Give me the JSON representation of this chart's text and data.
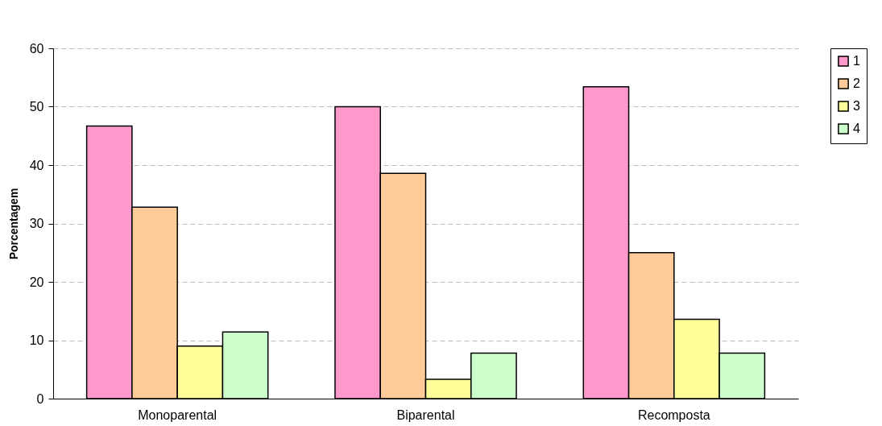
{
  "chart_data": {
    "type": "bar",
    "ylabel": "Porcentagem",
    "categories": [
      "Monoparental",
      "Biparental",
      "Recomposta"
    ],
    "series": [
      {
        "name": "1",
        "color": "#ff99cc",
        "values": [
          46.7,
          50,
          53.4
        ]
      },
      {
        "name": "2",
        "color": "#ffcc99",
        "values": [
          32.8,
          38.6,
          25.0
        ]
      },
      {
        "name": "3",
        "color": "#ffff99",
        "values": [
          9.0,
          3.3,
          13.6
        ]
      },
      {
        "name": "4",
        "color": "#ccffcc",
        "values": [
          11.4,
          7.8,
          7.8
        ]
      }
    ],
    "ylim": [
      0,
      60
    ],
    "yticks": [
      0,
      10,
      20,
      30,
      40,
      50,
      60
    ],
    "grid": "y",
    "legend": "top right"
  }
}
